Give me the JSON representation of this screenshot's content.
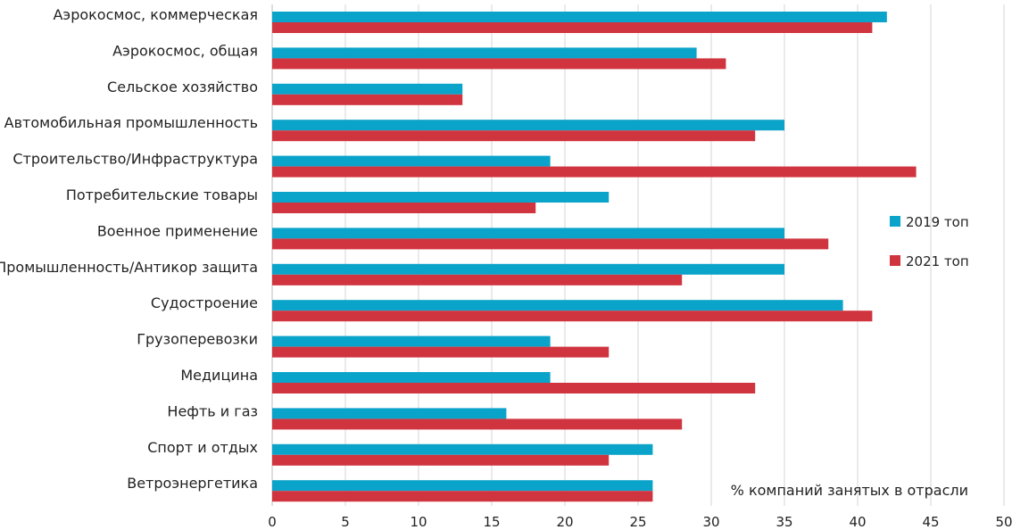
{
  "chart_data": {
    "type": "bar",
    "orientation": "horizontal",
    "categories": [
      "Аэрокосмос, коммерческая",
      "Аэрокосмос, общая",
      "Сельское хозяйство",
      "Автомобильная промышленность",
      "Строительство/Инфраструктура",
      "Потребительские товары",
      "Военное применение",
      "Промышленность/Антикор защита",
      "Судостроение",
      "Грузоперевозки",
      "Медицина",
      "Нефть и газ",
      "Спорт и отдых",
      "Ветроэнергетика"
    ],
    "series": [
      {
        "name": "2019 топ",
        "color": "#0aa3c9",
        "values": [
          42,
          29,
          13,
          35,
          19,
          23,
          35,
          35,
          39,
          19,
          19,
          16,
          26,
          26
        ]
      },
      {
        "name": "2021 топ",
        "color": "#d0343f",
        "values": [
          41,
          31,
          13,
          33,
          44,
          18,
          38,
          28,
          41,
          23,
          33,
          28,
          23,
          26
        ]
      }
    ],
    "xlim": [
      0,
      50
    ],
    "xticks": [
      0,
      5,
      10,
      15,
      20,
      25,
      30,
      35,
      40,
      45,
      50
    ],
    "xlabel": "% компаний занятых в отрасли",
    "ylabel": "",
    "title": "",
    "grid": "vertical",
    "legend_position": "right"
  }
}
